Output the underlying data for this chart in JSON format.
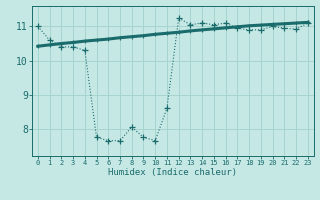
{
  "xlabel": "Humidex (Indice chaleur)",
  "bg_color": "#c5e8e5",
  "line_color": "#1a6b6b",
  "grid_color": "#a8d4d0",
  "xmin": -0.5,
  "xmax": 23.5,
  "ymin": 7.2,
  "ymax": 11.6,
  "yticks": [
    8,
    9,
    10,
    11
  ],
  "xticks": [
    0,
    1,
    2,
    3,
    4,
    5,
    6,
    7,
    8,
    9,
    10,
    11,
    12,
    13,
    14,
    15,
    16,
    17,
    18,
    19,
    20,
    21,
    22,
    23
  ],
  "line1_x": [
    0,
    1,
    2,
    3,
    4,
    5,
    6,
    7,
    8,
    9,
    10,
    11,
    12,
    13,
    14,
    15,
    16,
    17,
    18,
    19,
    20,
    21,
    22,
    23
  ],
  "line1_y": [
    11.0,
    10.6,
    10.4,
    10.4,
    10.3,
    7.75,
    7.65,
    7.65,
    8.05,
    7.75,
    7.65,
    8.6,
    11.25,
    11.05,
    11.1,
    11.05,
    11.1,
    10.95,
    10.9,
    10.9,
    11.0,
    10.95,
    10.92,
    11.1
  ],
  "line2_x": [
    0,
    1,
    2,
    3,
    4,
    5,
    6,
    7,
    8,
    9,
    10,
    11,
    12,
    13,
    14,
    15,
    16,
    17,
    18,
    19,
    20,
    21,
    22,
    23
  ],
  "line2_y": [
    10.42,
    10.46,
    10.5,
    10.53,
    10.57,
    10.6,
    10.63,
    10.67,
    10.7,
    10.73,
    10.77,
    10.8,
    10.83,
    10.87,
    10.9,
    10.93,
    10.96,
    10.99,
    11.02,
    11.04,
    11.06,
    11.08,
    11.1,
    11.12
  ]
}
